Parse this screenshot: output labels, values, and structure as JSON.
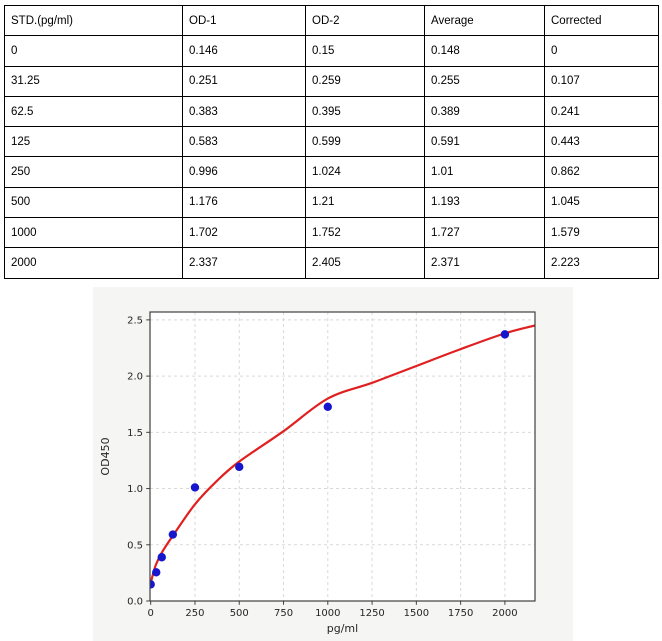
{
  "table": {
    "columns": [
      "STD.(pg/ml)",
      "OD-1",
      "OD-2",
      "Average",
      "Corrected"
    ],
    "rows": [
      [
        "0",
        "0.146",
        "0.15",
        "0.148",
        "0"
      ],
      [
        "31.25",
        "0.251",
        "0.259",
        "0.255",
        "0.107"
      ],
      [
        "62.5",
        "0.383",
        "0.395",
        "0.389",
        "0.241"
      ],
      [
        "125",
        "0.583",
        "0.599",
        "0.591",
        "0.443"
      ],
      [
        "250",
        "0.996",
        "1.024",
        "1.01",
        "0.862"
      ],
      [
        "500",
        "1.176",
        "1.21",
        "1.193",
        "1.045"
      ],
      [
        "1000",
        "1.702",
        "1.752",
        "1.727",
        "1.579"
      ],
      [
        "2000",
        "2.337",
        "2.405",
        "2.371",
        "2.223"
      ]
    ]
  },
  "chart_data": {
    "type": "scatter",
    "title": "",
    "xlabel": "pg/ml",
    "ylabel": "OD450",
    "xlim": [
      0,
      2170
    ],
    "ylim": [
      0,
      2.57
    ],
    "x_ticks": [
      0,
      250,
      500,
      750,
      1000,
      1250,
      1500,
      1750,
      2000
    ],
    "y_ticks": [
      "0.0",
      "0.5",
      "1.0",
      "1.5",
      "2.0",
      "2.5"
    ],
    "grid": true,
    "grid_style": "dashed",
    "legend": "none",
    "series": [
      {
        "name": "standard-points",
        "type": "scatter",
        "color": "#1616cd",
        "x": [
          0,
          31.25,
          62.5,
          125,
          250,
          500,
          1000,
          2000
        ],
        "y": [
          0.148,
          0.255,
          0.389,
          0.591,
          1.01,
          1.193,
          1.727,
          2.371
        ]
      },
      {
        "name": "fit-curve",
        "type": "line",
        "color": "#e02020",
        "x": [
          0,
          15,
          31.25,
          62.5,
          125,
          250,
          375,
          500,
          750,
          1000,
          1250,
          1500,
          1750,
          2000,
          2170
        ],
        "y": [
          0.16,
          0.25,
          0.33,
          0.43,
          0.58,
          0.86,
          1.07,
          1.24,
          1.51,
          1.8,
          1.94,
          2.09,
          2.24,
          2.38,
          2.45
        ]
      }
    ]
  },
  "colors": {
    "figure_bg": "#f5f5f4",
    "plot_bg": "#ffffff",
    "grid": "#d9d9d9",
    "spine": "#404040",
    "point": "#1616cd",
    "curve": "#e02020",
    "table_border": "#000000"
  }
}
